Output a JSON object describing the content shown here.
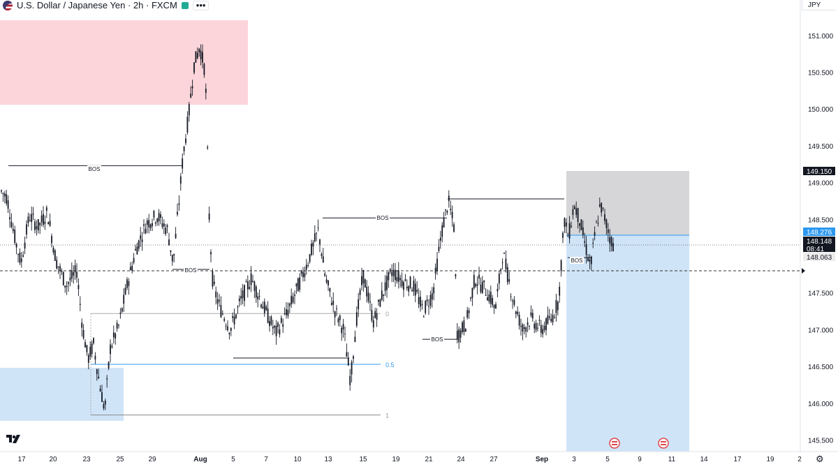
{
  "header": {
    "title": "U.S. Dollar / Japanese Yen · 2h · FXCM",
    "more_label": "•••",
    "currency": "JPY"
  },
  "colors": {
    "candle": "#131722",
    "supply_zone": "#fcd5da",
    "demand_zone": "#cfe4f7",
    "target_zone": "#d6d6d8",
    "fib_blue": "#2c98f0",
    "price_label_dark": "#131722",
    "price_label_blue": "#2c98f0",
    "axis_text": "#131722"
  },
  "chart_data": {
    "type": "candlestick",
    "y_axis": {
      "min": 145.4,
      "max": 151.45,
      "ticks": [
        "151.000",
        "150.500",
        "150.000",
        "149.500",
        "149.000",
        "148.500",
        "148.000",
        "147.500",
        "147.000",
        "146.500",
        "146.000",
        "145.500"
      ]
    },
    "x_axis": {
      "labels": [
        "17",
        "20",
        "23",
        "25",
        "29",
        "Aug",
        "5",
        "7",
        "10",
        "13",
        "15",
        "19",
        "21",
        "24",
        "27",
        "Sep",
        "3",
        "5",
        "9",
        "11",
        "14",
        "17",
        "19",
        "2"
      ]
    },
    "price_labels": [
      {
        "text": "149.150",
        "price": 149.15,
        "style": "dark"
      },
      {
        "text": "148.276",
        "price": 148.276,
        "style": "blue"
      },
      {
        "text": "148.148",
        "price": 148.148,
        "style": "dark"
      },
      {
        "text": "08:41",
        "price": 148.148,
        "style": "dark"
      },
      {
        "text": "148.063",
        "price": 148.063,
        "style": "light"
      }
    ],
    "annotations": [
      {
        "text": "BOS",
        "price": 149.23
      },
      {
        "text": "BOS",
        "price": 147.82
      },
      {
        "text": "BOS",
        "price": 148.52
      },
      {
        "text": "BOS",
        "price": 146.87
      },
      {
        "text": "BOS",
        "price": 147.98
      }
    ],
    "fib_levels": [
      {
        "label": "0",
        "price": 147.22
      },
      {
        "label": "0.5",
        "price": 146.53
      },
      {
        "label": "1",
        "price": 145.84
      }
    ],
    "price_path": [
      [
        0,
        148.9
      ],
      [
        10,
        148.8
      ],
      [
        20,
        148.3
      ],
      [
        30,
        147.9
      ],
      [
        42,
        148.55
      ],
      [
        55,
        148.4
      ],
      [
        68,
        148.6
      ],
      [
        80,
        147.95
      ],
      [
        95,
        147.6
      ],
      [
        110,
        147.8
      ],
      [
        118,
        147.05
      ],
      [
        126,
        146.6
      ],
      [
        134,
        146.8
      ],
      [
        142,
        146.3
      ],
      [
        150,
        145.9
      ],
      [
        158,
        146.75
      ],
      [
        170,
        147.05
      ],
      [
        182,
        147.6
      ],
      [
        195,
        148.1
      ],
      [
        210,
        148.45
      ],
      [
        225,
        148.55
      ],
      [
        240,
        148.35
      ],
      [
        248,
        147.9
      ],
      [
        256,
        148.7
      ],
      [
        262,
        149.35
      ],
      [
        270,
        149.9
      ],
      [
        278,
        150.6
      ],
      [
        286,
        150.85
      ],
      [
        294,
        150.5
      ],
      [
        300,
        148.4
      ],
      [
        305,
        147.6
      ],
      [
        315,
        147.3
      ],
      [
        330,
        147.0
      ],
      [
        345,
        147.4
      ],
      [
        360,
        147.7
      ],
      [
        378,
        147.3
      ],
      [
        395,
        146.95
      ],
      [
        410,
        147.2
      ],
      [
        425,
        147.55
      ],
      [
        440,
        147.9
      ],
      [
        456,
        148.35
      ],
      [
        466,
        147.7
      ],
      [
        480,
        147.25
      ],
      [
        492,
        147.0
      ],
      [
        502,
        146.3
      ],
      [
        510,
        147.1
      ],
      [
        520,
        147.75
      ],
      [
        535,
        147.1
      ],
      [
        548,
        147.5
      ],
      [
        562,
        147.8
      ],
      [
        578,
        147.65
      ],
      [
        592,
        147.6
      ],
      [
        606,
        147.25
      ],
      [
        620,
        147.5
      ],
      [
        632,
        148.3
      ],
      [
        642,
        148.75
      ],
      [
        650,
        148.4
      ],
      [
        655,
        146.9
      ],
      [
        668,
        147.1
      ],
      [
        680,
        147.7
      ],
      [
        695,
        147.55
      ],
      [
        710,
        147.3
      ],
      [
        720,
        148.05
      ],
      [
        735,
        147.4
      ],
      [
        748,
        147.0
      ],
      [
        760,
        147.15
      ],
      [
        775,
        147.0
      ],
      [
        790,
        147.15
      ],
      [
        800,
        147.4
      ],
      [
        808,
        148.5
      ],
      [
        814,
        148.25
      ],
      [
        822,
        148.7
      ],
      [
        830,
        148.5
      ],
      [
        838,
        148.15
      ],
      [
        846,
        147.85
      ],
      [
        852,
        148.3
      ],
      [
        860,
        148.7
      ],
      [
        868,
        148.45
      ],
      [
        875,
        148.2
      ],
      [
        880,
        148.15
      ]
    ]
  }
}
